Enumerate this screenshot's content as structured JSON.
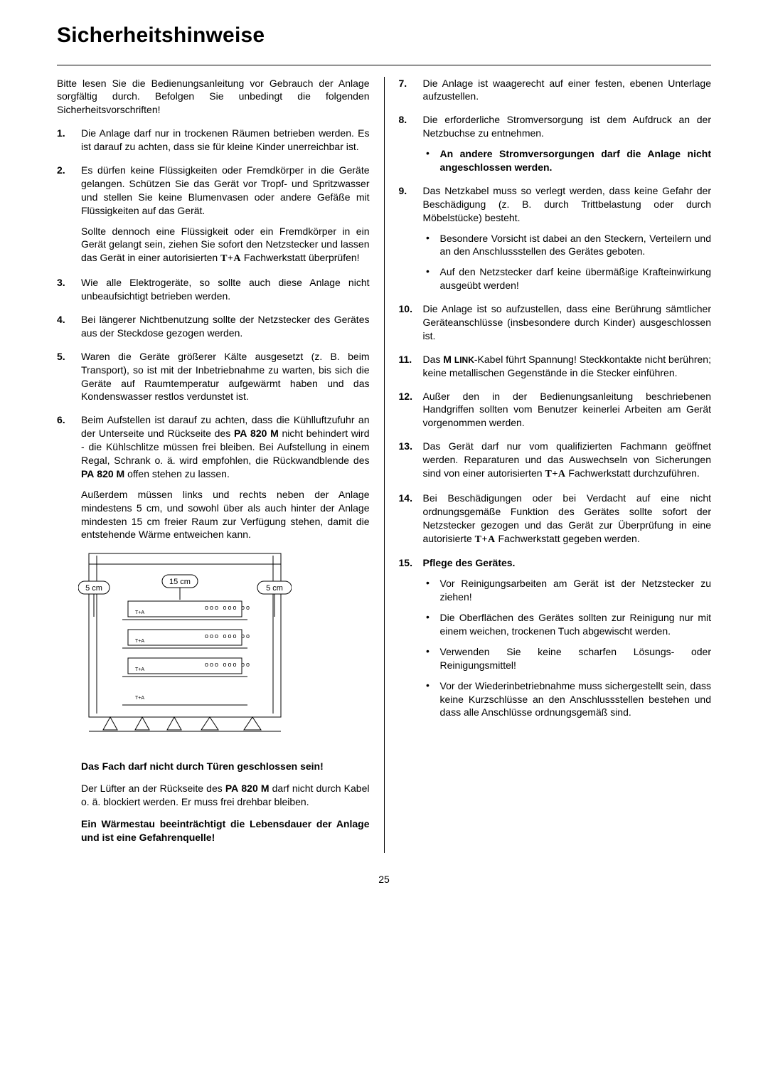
{
  "title": "Sicherheitshinweise",
  "intro": "Bitte lesen Sie die Bedienungsanleitung vor Gebrauch der Anlage sorgfältig durch. Befolgen Sie unbedingt die folgenden Sicherheitsvorschriften!",
  "left": {
    "items": [
      {
        "num": "1.",
        "paras": [
          "Die Anlage darf nur in trockenen Räumen betrieben werden. Es ist darauf zu achten, dass sie für kleine Kinder unerreichbar ist."
        ]
      },
      {
        "num": "2.",
        "paras": [
          "Es dürfen keine Flüssigkeiten oder Fremdkörper in die Geräte gelangen. Schützen Sie das Gerät vor Tropf- und Spritzwasser und stellen Sie keine Blumenvasen oder andere Gefäße mit Flüssigkeiten auf das Gerät.",
          "Sollte dennoch eine Flüssigkeit oder ein Fremdkörper in ein Gerät gelangt sein, ziehen Sie sofort den Netz­stecker und lassen das Gerät in einer autorisierten __BRAND__ Fachwerkstatt überprüfen!"
        ]
      },
      {
        "num": "3.",
        "paras": [
          "Wie alle Elektrogeräte, so sollte auch diese Anlage nicht unbeaufsichtigt betrieben werden."
        ]
      },
      {
        "num": "4.",
        "paras": [
          "Bei längerer Nichtbenutzung sollte der Netzstecker des Gerätes aus der Steckdose gezogen werden."
        ]
      },
      {
        "num": "5.",
        "paras": [
          "Waren die Geräte größerer Kälte ausgesetzt (z. B. beim Transport), so ist mit der Inbetriebnahme zu warten, bis sich die Geräte auf Raumtemperatur auf­gewärmt haben und das Kondenswasser restlos ver­dunstet ist."
        ]
      },
      {
        "num": "6.",
        "paras": [
          "Beim Aufstellen ist darauf zu achten, dass die Kühl­luftzufuhr an der Unterseite und Rückseite des <b>PA 820 M</b> nicht behindert wird - die Kühlschlitze müssen frei bleiben. Bei Aufstellung in einem Regal, Schrank o. ä. wird empfohlen, die Rückwandblende des <b>PA 820 M</b> offen stehen zu lassen.",
          "Außerdem müssen links und rechts neben der An­lage mindestens 5 cm, und sowohl über als auch hinter der Anlage mindesten 15 cm freier Raum zur Verfügung stehen, damit die entstehende Wärme entweichen kann."
        ]
      }
    ],
    "diagram": {
      "d5l": "5 cm",
      "d15": "15 cm",
      "d5r": "5  cm"
    },
    "after": {
      "bold1": "Das Fach darf nicht durch Türen geschlossen sein!",
      "p1": "Der Lüfter an der Rückseite des <b>PA 820 M</b> darf nicht durch Kabel o. ä. blockiert werden. Er muss frei drehbar bleiben.",
      "bold2": "Ein Wärmestau beeinträchtigt die Lebensdauer der Anlage und ist eine Gefahrenquelle!"
    }
  },
  "right": {
    "items": [
      {
        "num": "7.",
        "paras": [
          " Die Anlage ist waagerecht auf einer festen, ebenen Unterlage aufzustellen."
        ]
      },
      {
        "num": "8.",
        "paras": [
          "Die erforderliche Stromversorgung ist dem Aufdruck an der Netzbuchse zu entnehmen."
        ],
        "bullets": [
          {
            "bold": true,
            "text": "An andere Stromversorgungen darf die Anlage nicht angeschlossen werden."
          }
        ]
      },
      {
        "num": "9.",
        "paras": [
          "Das Netzkabel muss so verlegt werden, dass keine Gefahr der Beschädigung (z. B. durch Trittbelastung oder durch Möbelstücke) besteht."
        ],
        "bullets": [
          {
            "text": "Besondere Vorsicht ist dabei an den Steckern, Verteilern und an den Anschlussstellen des Ge­rätes geboten."
          },
          {
            "text": "Auf den Netzstecker darf keine übermäßige Krafteinwirkung ausgeübt werden!"
          }
        ]
      },
      {
        "num": "10.",
        "paras": [
          "Die Anlage ist so aufzustellen, dass eine Berührung sämtlicher Geräteanschlüsse (insbesondere durch Kinder) ausgeschlossen ist."
        ]
      },
      {
        "num": "11.",
        "paras": [
          "Das <b>M <span class=\"smallcaps\">LINK</span></b>-Kabel führt Spannung! Steckkontakte nicht berühren; keine metallischen Gegenstände in die Stecker einführen."
        ]
      },
      {
        "num": "12.",
        "paras": [
          "Außer den in der Bedienungsanleitung beschriebenen Handgriffen sollten vom Benutzer keinerlei Arbeiten am Gerät vorgenommen werden."
        ]
      },
      {
        "num": "13.",
        "paras": [
          "Das Gerät darf nur vom qualifizierten Fachmann geöffnet werden. Reparaturen und das Auswechseln von Sicherungen sind von einer autorisierten __BRAND__ Fachwerkstatt durchzuführen."
        ]
      },
      {
        "num": "14.",
        "paras": [
          "Bei Beschädigungen oder bei Verdacht auf eine nicht ordnungsgemäße Funktion des Gerätes sollte sofort der Netzstecker gezogen und das Gerät zur Über­prüfung in eine autorisierte __BRAND__ Fachwerkstatt gege­ben werden."
        ]
      },
      {
        "num": "15.",
        "boldlead": "Pflege des Gerätes.",
        "bullets": [
          {
            "text": "Vor Reinigungsarbeiten am Gerät ist der Netz­stecker zu ziehen!"
          },
          {
            "text": "Die Oberflächen des Gerätes sollten zur Reini­gung nur mit einem weichen, trockenen Tuch ab­gewischt werden."
          },
          {
            "text": "Verwenden Sie keine scharfen Lösungs- oder Reinigungsmittel!"
          },
          {
            "text": "Vor der Wiederinbetriebnahme muss sicherge­stellt sein, dass keine Kurzschlüsse an den An­schlussstellen bestehen und dass alle Anschlüs­se ordnungsgemäß sind."
          }
        ]
      }
    ]
  },
  "pageNumber": "25",
  "brand": "T+A"
}
